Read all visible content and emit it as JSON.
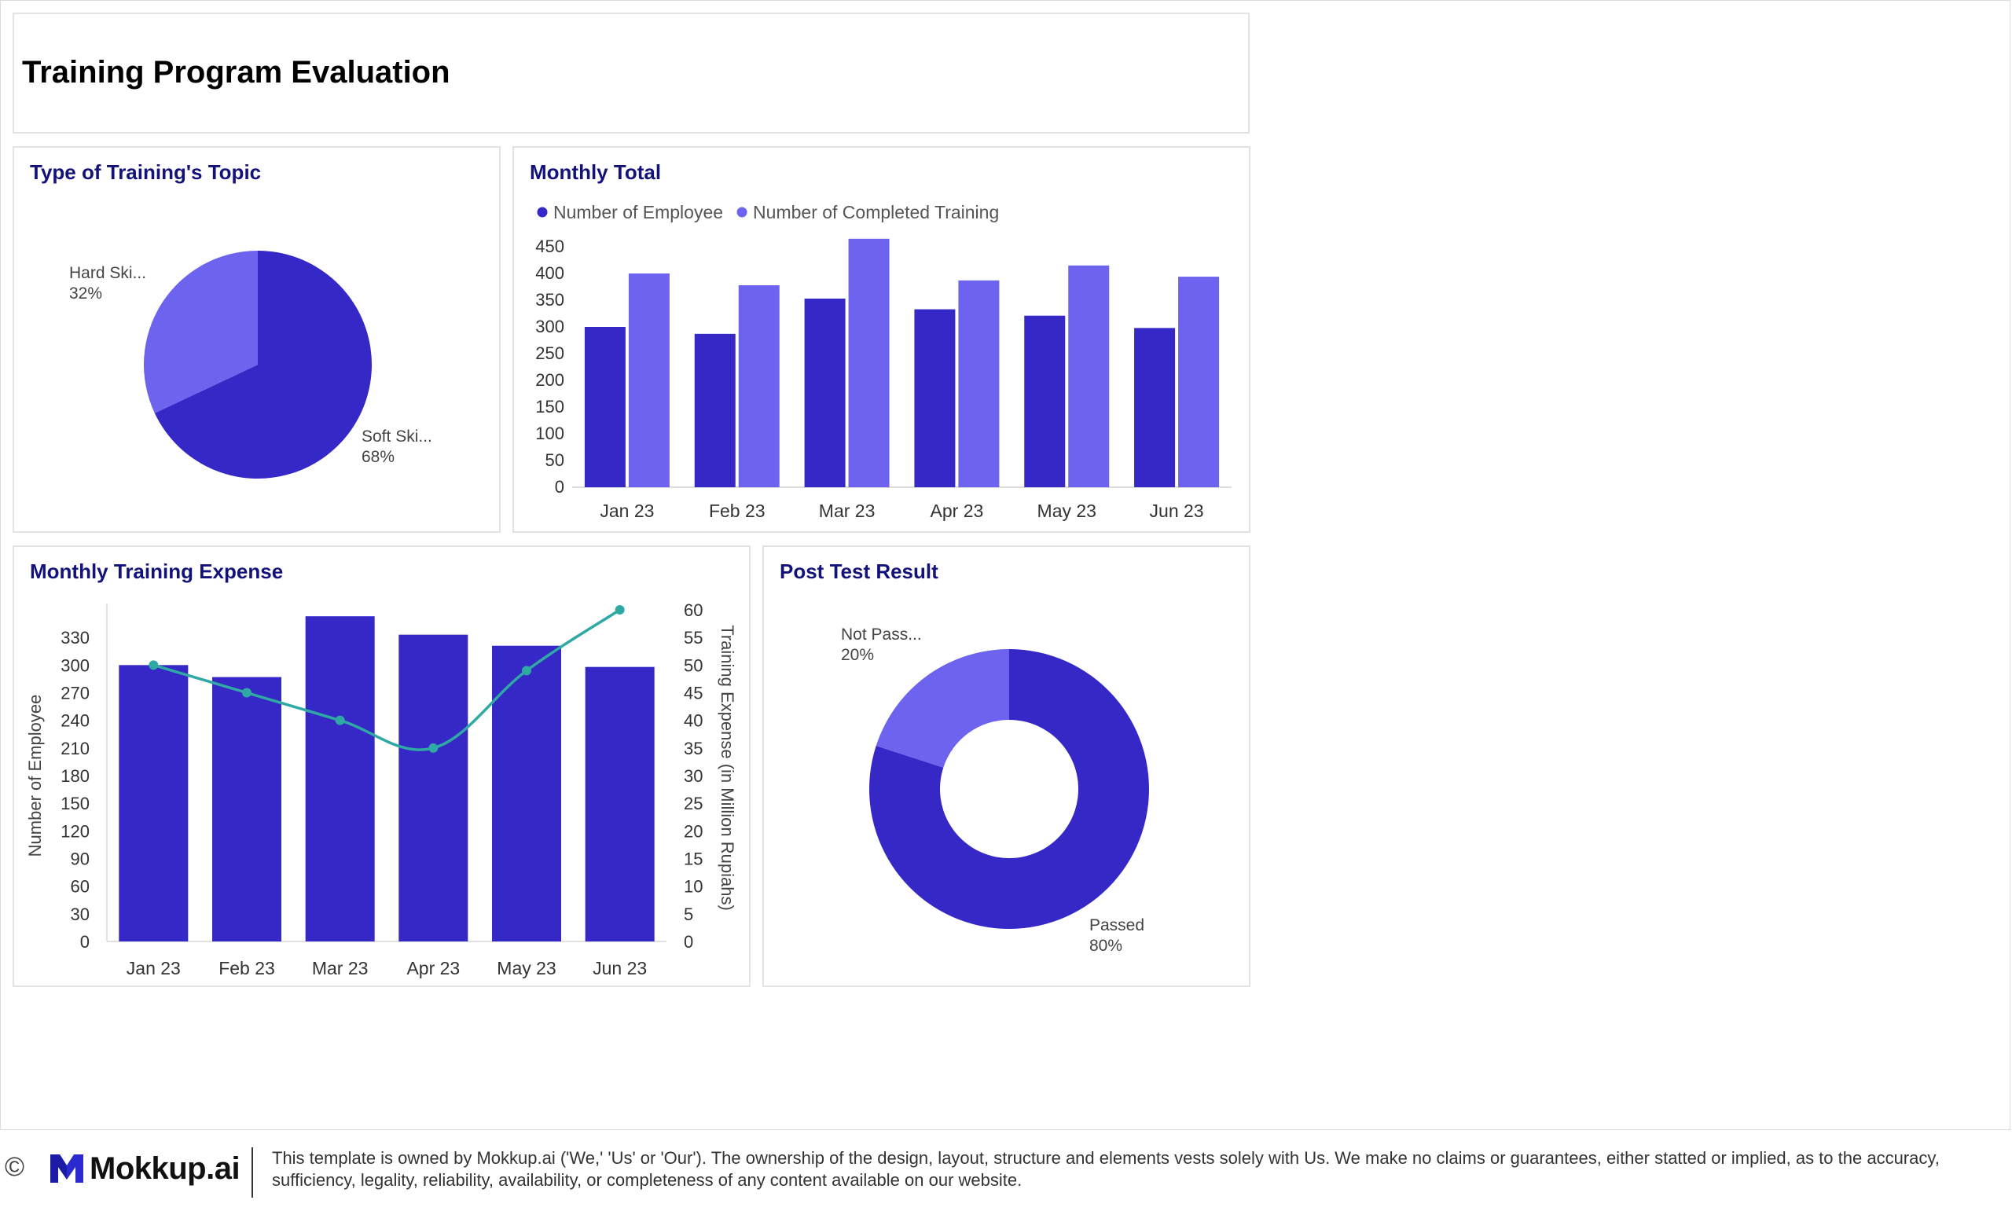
{
  "page": {
    "title": "Training Program Evaluation"
  },
  "colors": {
    "primary": "#3528c6",
    "secondary": "#6e63ef",
    "line": "#2fa9a4",
    "title": "#12127a"
  },
  "footer": {
    "copyright_symbol": "©",
    "logo_text": "Mokkup.ai",
    "disclaimer_line1": "This template is owned by Mokkup.ai ('We,' 'Us' or 'Our'). The ownership of the design, layout, structure and elements vests solely with Us. We make no claims or guarantees, either statted or implied, as to the accuracy,",
    "disclaimer_line2": "sufficiency, legality, reliability, availability, or completeness of any content available on our website."
  },
  "chart_data": [
    {
      "id": "topic",
      "type": "pie",
      "title": "Type of Training's Topic",
      "slices": [
        {
          "label": "Soft Ski...",
          "pct_label": "68%",
          "value": 68,
          "color": "#3528c6"
        },
        {
          "label": "Hard Ski...",
          "pct_label": "32%",
          "value": 32,
          "color": "#6e63ef"
        }
      ]
    },
    {
      "id": "monthly_total",
      "type": "bar",
      "title": "Monthly Total",
      "categories": [
        "Jan 23",
        "Feb 23",
        "Mar 23",
        "Apr 23",
        "May 23",
        "Jun 23"
      ],
      "series": [
        {
          "name": "Number of Employee",
          "color": "#3528c6",
          "values": [
            300,
            287,
            353,
            333,
            321,
            298
          ]
        },
        {
          "name": "Number of Completed Training",
          "color": "#6e63ef",
          "values": [
            400,
            378,
            465,
            387,
            415,
            394
          ]
        }
      ],
      "ylim": [
        0,
        450
      ],
      "yticks": [
        0,
        50,
        100,
        150,
        200,
        250,
        300,
        350,
        400,
        450
      ],
      "legend": "top-left"
    },
    {
      "id": "expense",
      "type": "bar",
      "title": "Monthly Training Expense",
      "categories": [
        "Jan 23",
        "Feb 23",
        "Mar 23",
        "Apr 23",
        "May 23",
        "Jun 23"
      ],
      "series": [
        {
          "name": "Number of Employee",
          "type": "bar",
          "axis": "left",
          "color": "#3528c6",
          "values": [
            300,
            287,
            353,
            333,
            321,
            298
          ]
        },
        {
          "name": "Training Expense (in Million Rupiahs)",
          "type": "line",
          "axis": "right",
          "color": "#2fa9a4",
          "values": [
            50,
            45,
            40,
            35,
            49,
            60
          ]
        }
      ],
      "ylabel": "Number of Employee",
      "ylabel_right": "Training Expense (in Million Rupiahs)",
      "ylim": [
        0,
        360
      ],
      "yticks": [
        0,
        30,
        60,
        90,
        120,
        150,
        180,
        210,
        240,
        270,
        300,
        330
      ],
      "ylim_right": [
        0,
        60
      ],
      "yticks_right": [
        0,
        5,
        10,
        15,
        20,
        25,
        30,
        35,
        40,
        45,
        50,
        55,
        60
      ]
    },
    {
      "id": "post_test",
      "type": "pie",
      "donut": true,
      "title": "Post Test Result",
      "slices": [
        {
          "label": "Passed",
          "pct_label": "80%",
          "value": 80,
          "color": "#3528c6"
        },
        {
          "label": "Not Pass...",
          "pct_label": "20%",
          "value": 20,
          "color": "#6e63ef"
        }
      ]
    }
  ]
}
